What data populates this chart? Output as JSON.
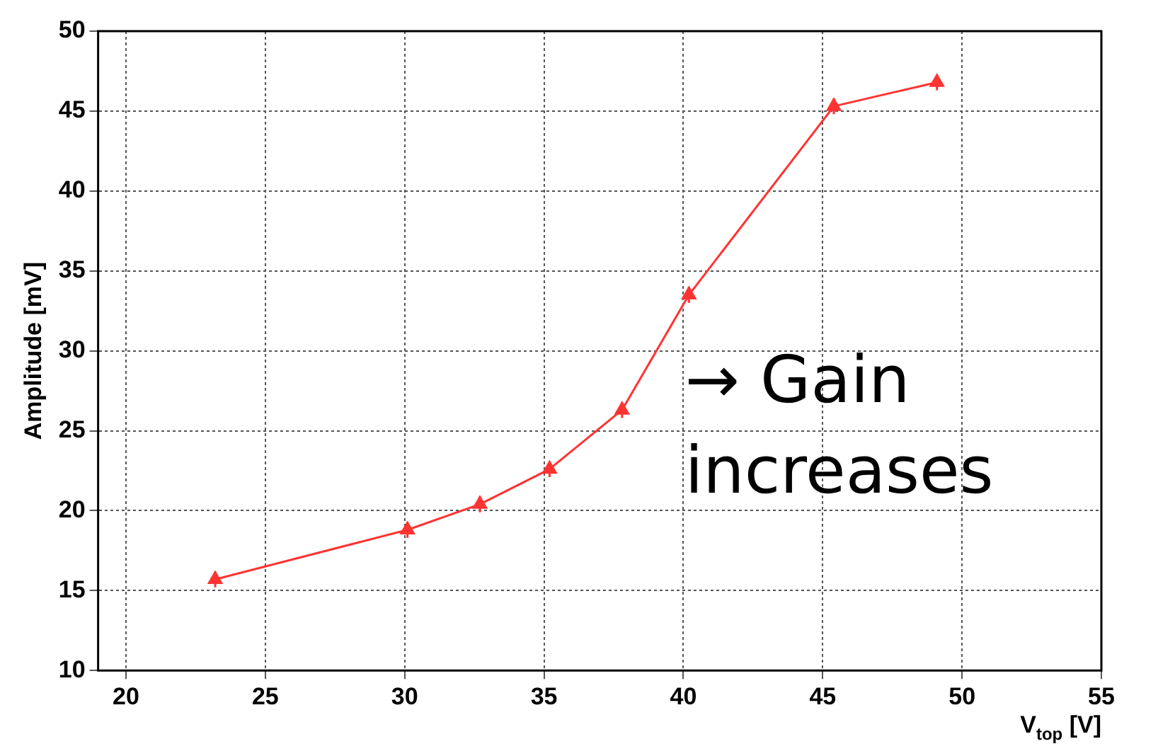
{
  "chart_data": {
    "type": "line",
    "xlabel": "V$_{top}$ [V]",
    "ylabel": "Amplitude [mV]",
    "x": [
      23.2,
      30.1,
      32.7,
      35.2,
      37.8,
      40.2,
      45.4,
      49.1
    ],
    "series": [
      {
        "color": "#ff3333",
        "values": [
          15.7,
          18.8,
          20.4,
          22.6,
          26.3,
          33.5,
          45.3,
          46.8
        ],
        "errors": [
          0.5,
          0.5,
          0.5,
          0.5,
          0.5,
          0.5,
          0.5,
          0.5
        ]
      }
    ],
    "xlim": [
      19,
      55
    ],
    "xticks": [
      20,
      25,
      30,
      35,
      40,
      45,
      50,
      55
    ],
    "ylim": [
      10,
      50
    ],
    "yticks": [
      10,
      15,
      20,
      25,
      30,
      35,
      40,
      45,
      50
    ],
    "grid": true,
    "legend": false,
    "marker": "triangle",
    "line_style": "solid",
    "annotations": [
      "→ Gain increases"
    ]
  }
}
